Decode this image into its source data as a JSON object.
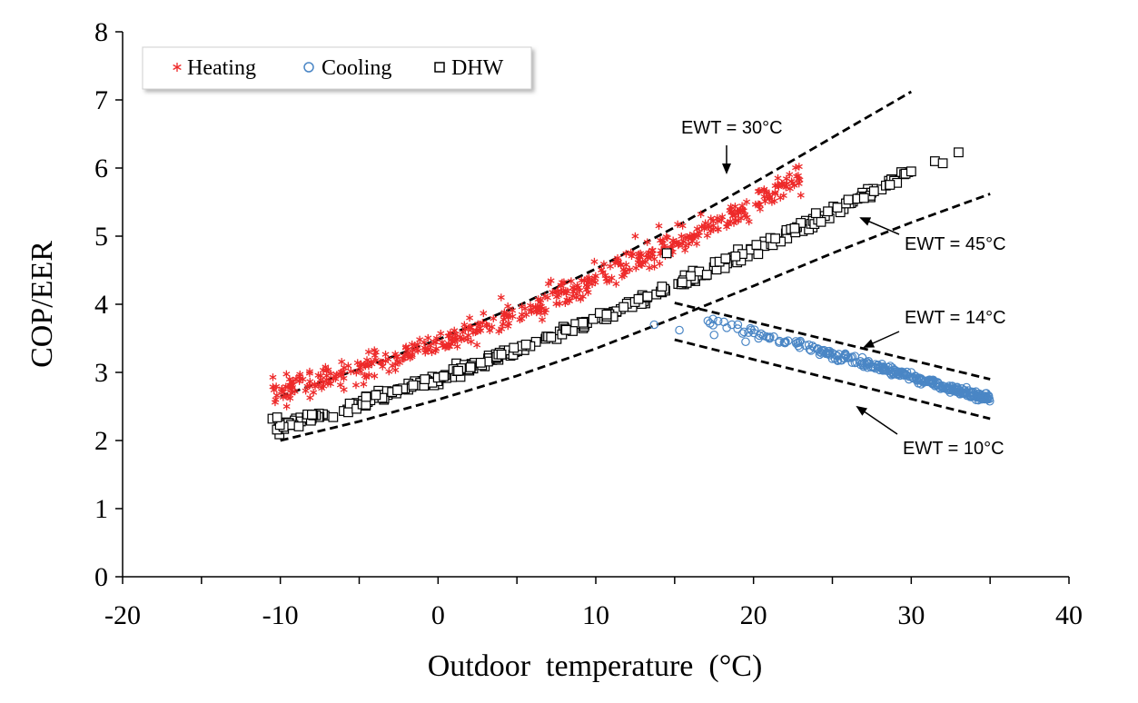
{
  "chart_data": {
    "type": "scatter",
    "xlabel": "Outdoor  temperature  (°C)",
    "ylabel": "COP/EER",
    "xlim": [
      -20,
      40
    ],
    "ylim": [
      0,
      8
    ],
    "x_ticks": [
      "-20",
      "-10",
      "0",
      "10",
      "20",
      "30",
      "40"
    ],
    "y_ticks": [
      "0",
      "1",
      "2",
      "3",
      "4",
      "5",
      "6",
      "7",
      "8"
    ],
    "legend": [
      "Heating",
      "Cooling",
      "DHW"
    ],
    "legend_position": "top-left",
    "colors": {
      "heating": "#ee2a2a",
      "cooling": "#4a86c5",
      "dhw": "#000000",
      "curve": "#000000"
    },
    "series": [
      {
        "name": "Heating",
        "marker": "asterisk",
        "trend": {
          "x_range": [
            -10.5,
            23
          ],
          "a": 3.37,
          "b": 0.08,
          "c": 0.0012
        },
        "spread": 0.18,
        "count": 480,
        "points": [
          [
            -10.3,
            2.6
          ],
          [
            -9.6,
            2.5
          ],
          [
            -4.4,
            3.3
          ],
          [
            2,
            3.8
          ],
          [
            4,
            4.1
          ],
          [
            7,
            4.3
          ],
          [
            12.5,
            5.0
          ],
          [
            14,
            5.15
          ],
          [
            19,
            5.35
          ],
          [
            21,
            5.55
          ],
          [
            23,
            5.6
          ]
        ]
      },
      {
        "name": "Cooling",
        "marker": "circle",
        "trend": {
          "x_range": [
            16.5,
            35
          ],
          "a": 4.9,
          "b": -0.0655,
          "c": 0
        },
        "spread": 0.06,
        "count": 300,
        "points": [
          [
            13.7,
            3.7
          ],
          [
            15.3,
            3.62
          ],
          [
            17.5,
            3.55
          ],
          [
            19.5,
            3.45
          ],
          [
            25,
            3.2
          ],
          [
            30,
            3.0
          ],
          [
            33.5,
            2.78
          ],
          [
            34.5,
            2.64
          ]
        ]
      },
      {
        "name": "DHW",
        "marker": "square",
        "trend": {
          "x_range": [
            -10.5,
            30
          ],
          "a": 2.92,
          "b": 0.08,
          "c": 0.0007
        },
        "spread": 0.08,
        "count": 340,
        "points": [
          [
            -10.5,
            2.32
          ],
          [
            -10.2,
            2.34
          ],
          [
            -8,
            2.38
          ],
          [
            14.5,
            4.75
          ],
          [
            30,
            5.95
          ],
          [
            31.5,
            6.1
          ],
          [
            32,
            6.07
          ],
          [
            33,
            6.23
          ]
        ]
      }
    ],
    "curves": [
      {
        "name": "EWT = 30°C",
        "style": "dashed",
        "x": [
          -10,
          -5,
          0,
          5,
          10,
          15,
          20,
          25,
          30
        ],
        "y": [
          2.65,
          3.05,
          3.48,
          3.97,
          4.52,
          5.13,
          5.78,
          6.45,
          7.12
        ]
      },
      {
        "name": "EWT = 45°C",
        "style": "dashed",
        "x": [
          -10,
          -5,
          0,
          5,
          10,
          15,
          20,
          25,
          30,
          35
        ],
        "y": [
          2.0,
          2.28,
          2.6,
          2.95,
          3.35,
          3.8,
          4.27,
          4.75,
          5.2,
          5.62
        ]
      },
      {
        "name": "EWT = 14°C",
        "style": "dashed",
        "x": [
          15,
          35
        ],
        "y": [
          4.02,
          2.9
        ]
      },
      {
        "name": "EWT = 10°C",
        "style": "dashed",
        "x": [
          15,
          35
        ],
        "y": [
          3.48,
          2.32
        ]
      }
    ],
    "annotations": [
      {
        "text": "EWT = 30°C",
        "x": 19,
        "y": 6.5,
        "arrow_to": [
          18.2,
          5.95
        ]
      },
      {
        "text": "EWT = 45°C",
        "x": 34,
        "y": 4.9,
        "arrow_to": [
          27,
          5.35
        ]
      },
      {
        "text": "EWT = 14°C",
        "x": 34,
        "y": 3.8,
        "arrow_to": [
          27.8,
          3.5
        ]
      },
      {
        "text": "EWT = 10°C",
        "x": 34,
        "y": 1.9,
        "arrow_to": [
          26.7,
          2.55
        ]
      }
    ]
  }
}
